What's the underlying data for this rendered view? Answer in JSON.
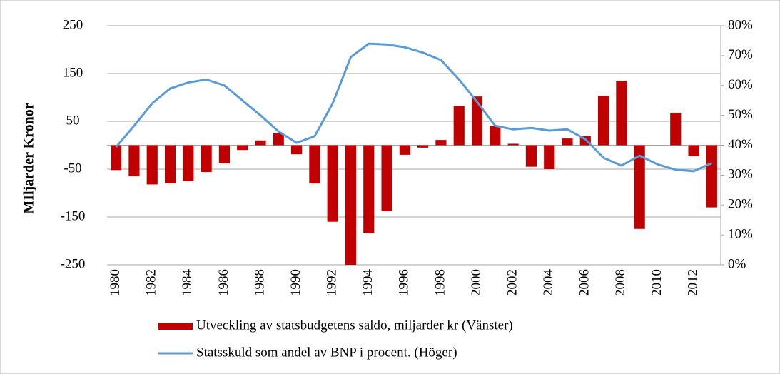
{
  "chart_data": {
    "type": "bar-line",
    "y_label": "MIljarder Kronor",
    "categories": [
      "1980",
      null,
      "1982",
      null,
      "1984",
      null,
      "1986",
      null,
      "1988",
      null,
      "1990",
      null,
      "1992",
      null,
      "1994",
      null,
      "1996",
      null,
      "1998",
      null,
      "2000",
      null,
      "2002",
      null,
      "2004",
      null,
      "2006",
      null,
      "2008",
      null,
      "2010",
      null,
      "2012",
      null
    ],
    "series": [
      {
        "name": "Utveckling av statsbudgetens saldo, miljarder kr (Vänster)",
        "type": "bar",
        "color": "#c00000",
        "values": [
          -52,
          -65,
          -82,
          -79,
          -75,
          -56,
          -38,
          -10,
          10,
          26,
          -19,
          -80,
          -160,
          -250,
          -184,
          -138,
          -20,
          -5,
          11,
          82,
          102,
          40,
          3,
          -45,
          -50,
          14,
          19,
          103,
          135,
          -175,
          0,
          68,
          -23,
          -130
        ]
      },
      {
        "name": "Statsskuld som andel av BNP i procent. (Höger)",
        "type": "line",
        "axis": "y2",
        "color": "#5b9bd5",
        "values": [
          39.4,
          46.5,
          54,
          59,
          61,
          62,
          60,
          55,
          50,
          44.6,
          40.8,
          43,
          54,
          69.5,
          74,
          73.7,
          72.8,
          71,
          68.5,
          62,
          54.5,
          46.5,
          45.3,
          45.8,
          44.9,
          45.3,
          42,
          35.8,
          33.2,
          36.5,
          33.6,
          31.8,
          31.3,
          34
        ]
      }
    ],
    "ylim": [
      -250,
      250
    ],
    "yticks": [
      -250,
      -150,
      -50,
      50,
      150,
      250
    ],
    "y2lim": [
      0,
      80
    ],
    "y2ticks": [
      {
        "value": 0,
        "label": "0%"
      },
      {
        "value": 10,
        "label": "10%"
      },
      {
        "value": 20,
        "label": "20%"
      },
      {
        "value": 30,
        "label": "30%"
      },
      {
        "value": 40,
        "label": "40%"
      },
      {
        "value": 50,
        "label": "50%"
      },
      {
        "value": 60,
        "label": "60%"
      },
      {
        "value": 70,
        "label": "70%"
      },
      {
        "value": 80,
        "label": "80%"
      }
    ],
    "grid": true
  }
}
